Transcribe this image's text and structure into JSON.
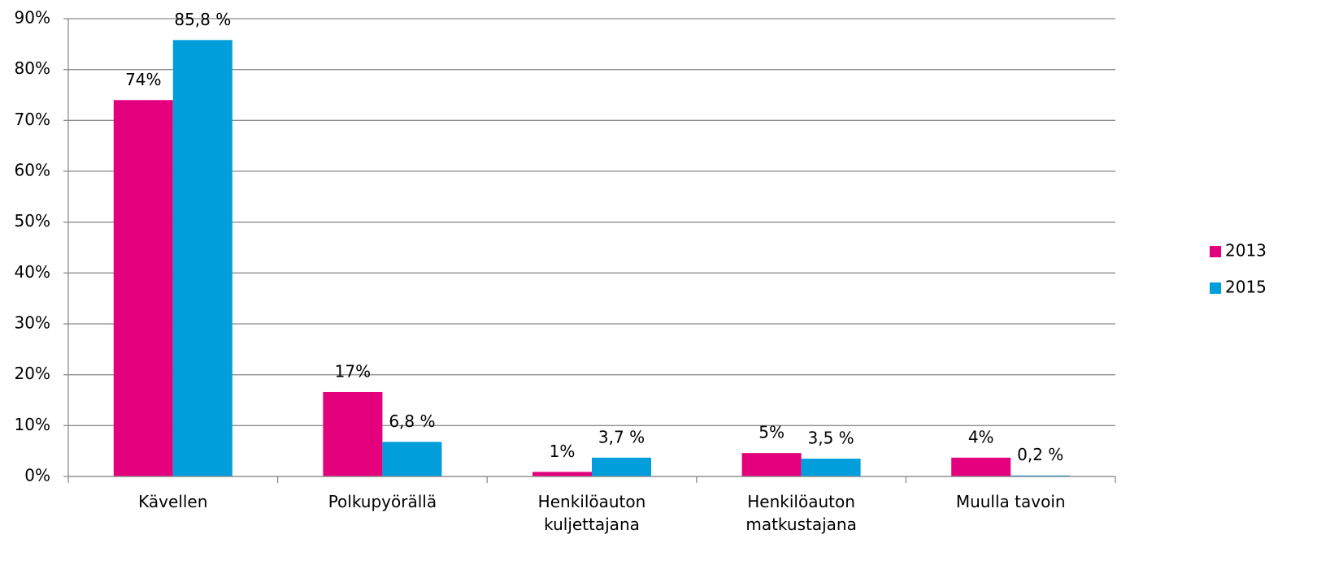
{
  "chart_data": {
    "type": "bar",
    "categories": [
      "Kävellen",
      "Polkupyörällä",
      "Henkilöauton\nkuljettajana",
      "Henkilöauton\nmatkustajana",
      "Muulla tavoin"
    ],
    "series": [
      {
        "name": "2013",
        "color": "#e4007c",
        "values": [
          74,
          16.6,
          0.9,
          4.6,
          3.7
        ],
        "value_labels": [
          "74%",
          "17%",
          "1%",
          "5%",
          "4%"
        ]
      },
      {
        "name": "2015",
        "color": "#009fdc",
        "values": [
          85.8,
          6.8,
          3.7,
          3.5,
          0.2
        ],
        "value_labels": [
          "85,8 %",
          "6,8 %",
          "3,7 %",
          "3,5 %",
          "0,2 %"
        ]
      }
    ],
    "ylim": [
      0,
      90
    ],
    "yticks": [
      {
        "value": 0,
        "label": "0%"
      },
      {
        "value": 10,
        "label": "10%"
      },
      {
        "value": 20,
        "label": "20%"
      },
      {
        "value": 30,
        "label": "30%"
      },
      {
        "value": 40,
        "label": "40%"
      },
      {
        "value": 50,
        "label": "50%"
      },
      {
        "value": 60,
        "label": "60%"
      },
      {
        "value": 70,
        "label": "70%"
      },
      {
        "value": 80,
        "label": "80%"
      },
      {
        "value": 90,
        "label": "90%"
      }
    ],
    "grid": true,
    "legend": "right"
  }
}
